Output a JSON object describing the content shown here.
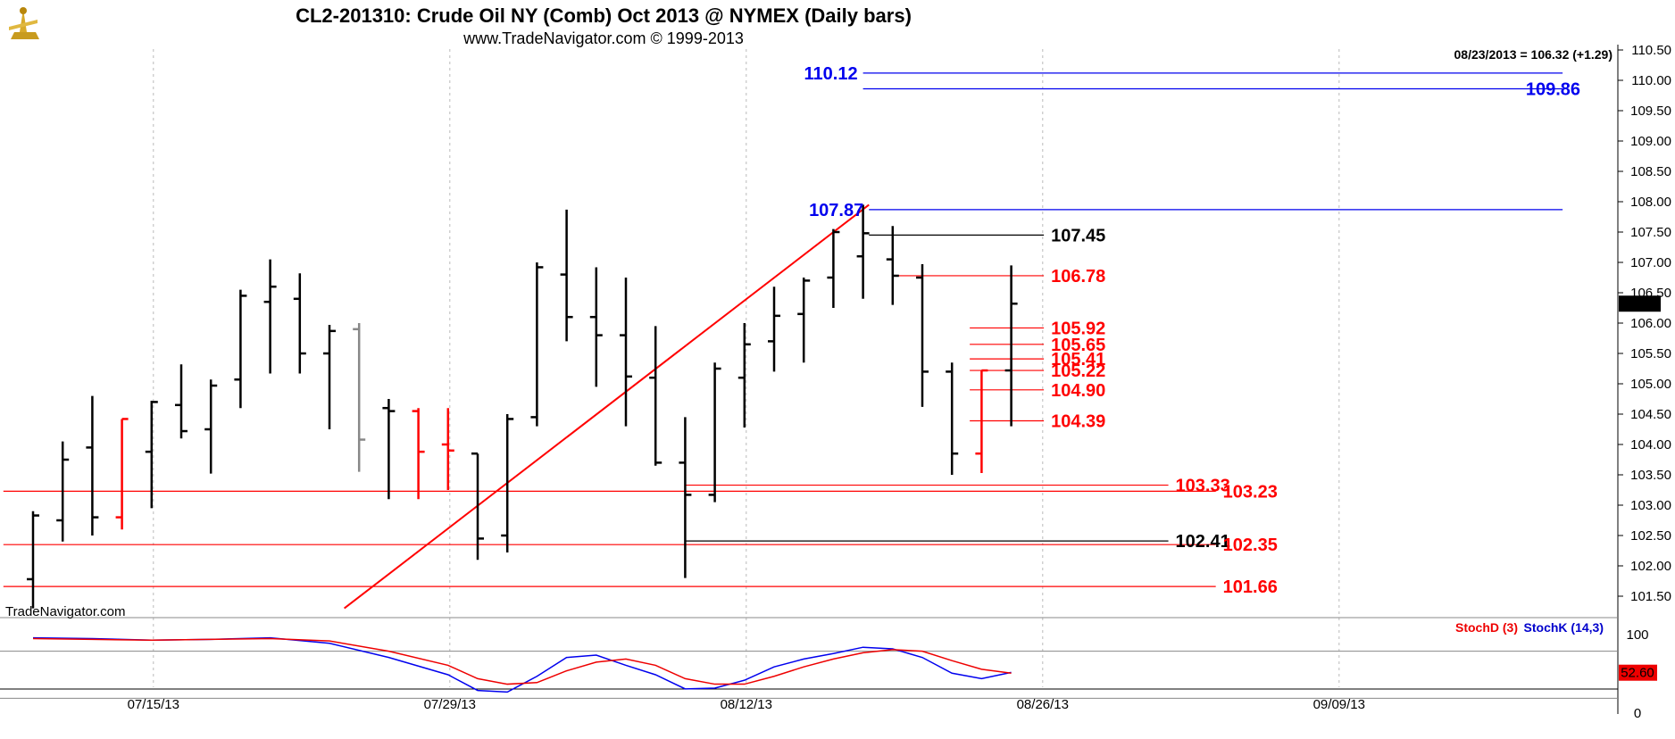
{
  "header": {
    "title": "CL2-201310:  Crude Oil NY (Comb) Oct 2013 @ NYMEX  (Daily bars)",
    "subtitle": "www.TradeNavigator.com © 1999-2013",
    "last_quote": "08/23/2013 = 106.32 (+1.29)",
    "watermark": "TradeNavigator.com"
  },
  "indicator": {
    "legend_d": "StochD (3)",
    "legend_k": "StochK (14,3)",
    "current_value_label": "52.60",
    "ticks": [
      "100",
      "0"
    ]
  },
  "colors": {
    "background": "#ffffff",
    "bar_up_down": "#000000",
    "bar_highlight": "#ff0000",
    "bar_neutral": "#888888",
    "level_red": "#ff0000",
    "level_blue": "#0000ee",
    "level_black": "#000000",
    "grid": "#bbbbbb"
  },
  "chart_data": {
    "type": "ohlc",
    "y_range": [
      101.3,
      110.6
    ],
    "grid": "vertical dashed",
    "price_axis_labels": [
      "110.50",
      "110.00",
      "109.50",
      "109.00",
      "108.50",
      "108.00",
      "107.50",
      "107.00",
      "106.50",
      "106.00",
      "105.50",
      "105.00",
      "104.50",
      "104.00",
      "103.50",
      "103.00",
      "102.50",
      "102.00",
      "101.50"
    ],
    "current_price_label": "106.32",
    "date_labels": [
      {
        "label": "07/15/13",
        "slot": 4
      },
      {
        "label": "07/29/13",
        "slot": 14
      },
      {
        "label": "08/12/13",
        "slot": 24
      },
      {
        "label": "08/26/13",
        "slot": 34
      },
      {
        "label": "09/09/13",
        "slot": 44
      }
    ],
    "bars": [
      {
        "slot": 0,
        "o": 101.78,
        "h": 102.9,
        "l": 101.3,
        "c": 102.83,
        "color": "black"
      },
      {
        "slot": 1,
        "o": 102.75,
        "h": 104.05,
        "l": 102.4,
        "c": 103.75,
        "color": "black"
      },
      {
        "slot": 2,
        "o": 103.95,
        "h": 104.8,
        "l": 102.5,
        "c": 102.8,
        "color": "black"
      },
      {
        "slot": 3,
        "o": 102.8,
        "h": 104.42,
        "l": 102.6,
        "c": 104.42,
        "color": "red"
      },
      {
        "slot": 4,
        "o": 103.88,
        "h": 104.72,
        "l": 102.95,
        "c": 104.7,
        "color": "black"
      },
      {
        "slot": 5,
        "o": 104.65,
        "h": 105.32,
        "l": 104.1,
        "c": 104.22,
        "color": "black"
      },
      {
        "slot": 6,
        "o": 104.25,
        "h": 105.07,
        "l": 103.52,
        "c": 104.97,
        "color": "black"
      },
      {
        "slot": 7,
        "o": 105.07,
        "h": 106.55,
        "l": 104.6,
        "c": 106.45,
        "color": "black"
      },
      {
        "slot": 8,
        "o": 106.35,
        "h": 107.05,
        "l": 105.17,
        "c": 106.6,
        "color": "black"
      },
      {
        "slot": 9,
        "o": 106.4,
        "h": 106.82,
        "l": 105.17,
        "c": 105.5,
        "color": "black"
      },
      {
        "slot": 10,
        "o": 105.5,
        "h": 105.97,
        "l": 104.25,
        "c": 105.87,
        "color": "black"
      },
      {
        "slot": 11,
        "o": 105.9,
        "h": 106.0,
        "l": 103.55,
        "c": 104.08,
        "color": "grey"
      },
      {
        "slot": 12,
        "o": 104.6,
        "h": 104.75,
        "l": 103.1,
        "c": 104.55,
        "color": "black"
      },
      {
        "slot": 13,
        "o": 104.55,
        "h": 104.6,
        "l": 103.1,
        "c": 103.88,
        "color": "red"
      },
      {
        "slot": 14,
        "o": 104.0,
        "h": 104.6,
        "l": 103.25,
        "c": 103.9,
        "color": "red"
      },
      {
        "slot": 15,
        "o": 103.85,
        "h": 103.85,
        "l": 102.1,
        "c": 102.45,
        "color": "black"
      },
      {
        "slot": 16,
        "o": 102.5,
        "h": 104.5,
        "l": 102.22,
        "c": 104.42,
        "color": "black"
      },
      {
        "slot": 17,
        "o": 104.45,
        "h": 107.0,
        "l": 104.3,
        "c": 106.92,
        "color": "black"
      },
      {
        "slot": 18,
        "o": 106.8,
        "h": 107.87,
        "l": 105.7,
        "c": 106.1,
        "color": "black"
      },
      {
        "slot": 19,
        "o": 106.1,
        "h": 106.92,
        "l": 104.95,
        "c": 105.8,
        "color": "black"
      },
      {
        "slot": 20,
        "o": 105.8,
        "h": 106.75,
        "l": 104.3,
        "c": 105.12,
        "color": "black"
      },
      {
        "slot": 21,
        "o": 105.1,
        "h": 105.95,
        "l": 103.65,
        "c": 103.7,
        "color": "black"
      },
      {
        "slot": 22,
        "o": 103.7,
        "h": 104.45,
        "l": 101.8,
        "c": 103.17,
        "color": "black"
      },
      {
        "slot": 23,
        "o": 103.17,
        "h": 105.35,
        "l": 103.05,
        "c": 105.25,
        "color": "black"
      },
      {
        "slot": 24,
        "o": 105.1,
        "h": 106.0,
        "l": 104.28,
        "c": 105.65,
        "color": "black"
      },
      {
        "slot": 25,
        "o": 105.7,
        "h": 106.6,
        "l": 105.2,
        "c": 106.12,
        "color": "black"
      },
      {
        "slot": 26,
        "o": 106.15,
        "h": 106.75,
        "l": 105.35,
        "c": 106.7,
        "color": "black"
      },
      {
        "slot": 27,
        "o": 106.75,
        "h": 107.55,
        "l": 106.25,
        "c": 107.5,
        "color": "black"
      },
      {
        "slot": 28,
        "o": 107.1,
        "h": 107.95,
        "l": 106.4,
        "c": 107.48,
        "color": "black"
      },
      {
        "slot": 29,
        "o": 107.05,
        "h": 107.6,
        "l": 106.3,
        "c": 106.78,
        "color": "black"
      },
      {
        "slot": 30,
        "o": 106.75,
        "h": 106.97,
        "l": 104.62,
        "c": 105.2,
        "color": "black"
      },
      {
        "slot": 31,
        "o": 105.2,
        "h": 105.35,
        "l": 103.5,
        "c": 103.85,
        "color": "black"
      },
      {
        "slot": 32,
        "o": 103.85,
        "h": 105.22,
        "l": 103.53,
        "c": 105.22,
        "color": "red"
      },
      {
        "slot": 33,
        "o": 105.22,
        "h": 106.95,
        "l": 104.3,
        "c": 106.32,
        "color": "black"
      }
    ],
    "trendline": {
      "from_slot": 10.5,
      "from_price": 101.3,
      "to_slot": 28.2,
      "to_price": 107.95,
      "color": "red"
    },
    "levels": [
      {
        "price": 110.12,
        "label": "110.12",
        "color": "blue",
        "x_from_slot": 28.0,
        "x_to_slot": 51.6,
        "label_side": "left"
      },
      {
        "price": 109.86,
        "label": "109.86",
        "color": "blue",
        "x_from_slot": 28.0,
        "x_to_slot": 51.6,
        "label_side": "right"
      },
      {
        "price": 107.87,
        "label": "107.87",
        "color": "blue",
        "x_from_slot": 28.2,
        "x_to_slot": 51.6,
        "label_side": "left"
      },
      {
        "price": 107.45,
        "label": "107.45",
        "color": "black",
        "x_from_slot": 28.2,
        "x_to_slot": 34.1,
        "label_side": "right"
      },
      {
        "price": 106.78,
        "label": "106.78",
        "color": "red",
        "x_from_slot": 29.0,
        "x_to_slot": 34.1,
        "label_side": "right"
      },
      {
        "price": 105.92,
        "label": "105.92",
        "color": "red",
        "x_from_slot": 31.6,
        "x_to_slot": 34.1,
        "label_side": "right"
      },
      {
        "price": 105.65,
        "label": "105.65",
        "color": "red",
        "x_from_slot": 31.6,
        "x_to_slot": 34.1,
        "label_side": "right"
      },
      {
        "price": 105.41,
        "label": "105.41",
        "color": "red",
        "x_from_slot": 31.6,
        "x_to_slot": 34.1,
        "label_side": "right"
      },
      {
        "price": 105.22,
        "label": "105.22",
        "color": "red",
        "x_from_slot": 31.6,
        "x_to_slot": 34.1,
        "label_side": "right"
      },
      {
        "price": 104.9,
        "label": "104.90",
        "color": "red",
        "x_from_slot": 31.6,
        "x_to_slot": 34.1,
        "label_side": "right"
      },
      {
        "price": 104.39,
        "label": "104.39",
        "color": "red",
        "x_from_slot": 31.6,
        "x_to_slot": 34.1,
        "label_side": "right"
      },
      {
        "price": 103.33,
        "label": "103.33",
        "color": "red",
        "x_from_slot": 22.0,
        "x_to_slot": 38.3,
        "label_side": "right"
      },
      {
        "price": 103.23,
        "label": "103.23",
        "color": "red",
        "x_from_slot": -1.0,
        "x_to_slot": 39.9,
        "label_side": "right"
      },
      {
        "price": 102.41,
        "label": "102.41",
        "color": "black",
        "x_from_slot": 22.0,
        "x_to_slot": 38.3,
        "label_side": "right"
      },
      {
        "price": 102.35,
        "label": "102.35",
        "color": "red",
        "x_from_slot": -1.0,
        "x_to_slot": 39.9,
        "label_side": "right"
      },
      {
        "price": 101.66,
        "label": "101.66",
        "color": "red",
        "x_from_slot": -1.0,
        "x_to_slot": 39.9,
        "label_side": "right"
      }
    ],
    "stochastic": {
      "y_range": [
        0,
        100
      ],
      "reference_lines": [
        80,
        20
      ],
      "stoch_k": [
        {
          "slot": 0,
          "v": 97
        },
        {
          "slot": 2,
          "v": 96
        },
        {
          "slot": 4,
          "v": 94
        },
        {
          "slot": 6,
          "v": 95
        },
        {
          "slot": 8,
          "v": 97
        },
        {
          "slot": 10,
          "v": 90
        },
        {
          "slot": 12,
          "v": 72
        },
        {
          "slot": 14,
          "v": 50
        },
        {
          "slot": 15,
          "v": 30
        },
        {
          "slot": 16,
          "v": 28
        },
        {
          "slot": 17,
          "v": 48
        },
        {
          "slot": 18,
          "v": 72
        },
        {
          "slot": 19,
          "v": 75
        },
        {
          "slot": 20,
          "v": 62
        },
        {
          "slot": 21,
          "v": 50
        },
        {
          "slot": 22,
          "v": 32
        },
        {
          "slot": 23,
          "v": 33
        },
        {
          "slot": 24,
          "v": 43
        },
        {
          "slot": 25,
          "v": 60
        },
        {
          "slot": 26,
          "v": 70
        },
        {
          "slot": 27,
          "v": 77
        },
        {
          "slot": 28,
          "v": 85
        },
        {
          "slot": 29,
          "v": 83
        },
        {
          "slot": 30,
          "v": 72
        },
        {
          "slot": 31,
          "v": 52
        },
        {
          "slot": 32,
          "v": 45
        },
        {
          "slot": 33,
          "v": 53
        }
      ],
      "stoch_d": [
        {
          "slot": 0,
          "v": 96
        },
        {
          "slot": 2,
          "v": 95
        },
        {
          "slot": 4,
          "v": 94
        },
        {
          "slot": 6,
          "v": 95
        },
        {
          "slot": 8,
          "v": 96
        },
        {
          "slot": 10,
          "v": 93
        },
        {
          "slot": 12,
          "v": 80
        },
        {
          "slot": 14,
          "v": 62
        },
        {
          "slot": 15,
          "v": 45
        },
        {
          "slot": 16,
          "v": 38
        },
        {
          "slot": 17,
          "v": 40
        },
        {
          "slot": 18,
          "v": 55
        },
        {
          "slot": 19,
          "v": 66
        },
        {
          "slot": 20,
          "v": 70
        },
        {
          "slot": 21,
          "v": 62
        },
        {
          "slot": 22,
          "v": 45
        },
        {
          "slot": 23,
          "v": 38
        },
        {
          "slot": 24,
          "v": 38
        },
        {
          "slot": 25,
          "v": 48
        },
        {
          "slot": 26,
          "v": 60
        },
        {
          "slot": 27,
          "v": 70
        },
        {
          "slot": 28,
          "v": 78
        },
        {
          "slot": 29,
          "v": 82
        },
        {
          "slot": 30,
          "v": 80
        },
        {
          "slot": 31,
          "v": 68
        },
        {
          "slot": 32,
          "v": 57
        },
        {
          "slot": 33,
          "v": 52
        }
      ]
    }
  }
}
